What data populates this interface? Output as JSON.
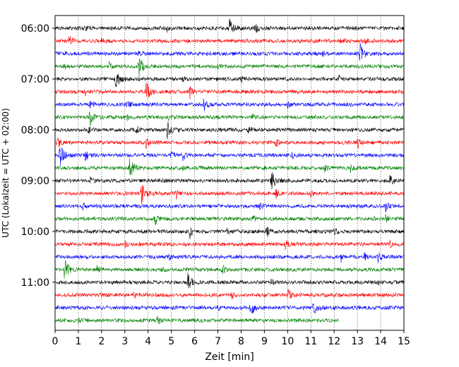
{
  "chart_data": {
    "type": "line",
    "title": "",
    "xlabel": "Zeit  [min]",
    "ylabel": "UTC (Lokalzeit = UTC + 02:00)",
    "xlim": [
      0,
      15
    ],
    "x_ticks": [
      0,
      1,
      2,
      3,
      4,
      5,
      6,
      7,
      8,
      9,
      10,
      11,
      12,
      13,
      14,
      15
    ],
    "y_tick_labels": [
      "06:00",
      "07:00",
      "08:00",
      "09:00",
      "10:00",
      "11:00"
    ],
    "trace_interval_min": 15,
    "trace_colors": [
      "#000000",
      "#ff0000",
      "#0000ff",
      "#008000"
    ],
    "grid": "vertical dotted lines at each minute",
    "legend": "none",
    "traces": [
      {
        "start": "06:00",
        "end_min": 15,
        "events": [
          [
            7.5,
            12
          ],
          [
            8.6,
            10
          ],
          [
            4.8,
            5
          ],
          [
            1.3,
            4
          ]
        ]
      },
      {
        "start": "06:15",
        "end_min": 15,
        "events": [
          [
            0.6,
            9
          ],
          [
            2.0,
            4
          ],
          [
            12.3,
            4
          ],
          [
            13.3,
            5
          ]
        ]
      },
      {
        "start": "06:30",
        "end_min": 15,
        "events": [
          [
            13.1,
            14
          ],
          [
            11.5,
            4
          ],
          [
            3.6,
            3
          ]
        ]
      },
      {
        "start": "06:45",
        "end_min": 15,
        "events": [
          [
            3.6,
            16
          ],
          [
            2.3,
            6
          ],
          [
            0.4,
            4
          ],
          [
            7.0,
            4
          ]
        ]
      },
      {
        "start": "07:00",
        "end_min": 15,
        "events": [
          [
            2.6,
            13
          ],
          [
            8.0,
            5
          ],
          [
            12.2,
            5
          ],
          [
            5.5,
            4
          ]
        ]
      },
      {
        "start": "07:15",
        "end_min": 15,
        "events": [
          [
            3.9,
            16
          ],
          [
            5.8,
            9
          ],
          [
            1.3,
            4
          ]
        ]
      },
      {
        "start": "07:30",
        "end_min": 15,
        "events": [
          [
            6.4,
            10
          ],
          [
            1.5,
            7
          ],
          [
            3.1,
            4
          ],
          [
            10.0,
            4
          ]
        ]
      },
      {
        "start": "07:45",
        "end_min": 15,
        "events": [
          [
            1.5,
            12
          ],
          [
            4.9,
            8
          ],
          [
            3.1,
            6
          ],
          [
            8.5,
            4
          ]
        ]
      },
      {
        "start": "08:00",
        "end_min": 15,
        "events": [
          [
            4.8,
            14
          ],
          [
            1.4,
            8
          ],
          [
            3.5,
            6
          ],
          [
            8.3,
            5
          ]
        ]
      },
      {
        "start": "08:15",
        "end_min": 15,
        "events": [
          [
            0.1,
            9
          ],
          [
            3.9,
            8
          ],
          [
            9.5,
            6
          ],
          [
            13.0,
            8
          ]
        ]
      },
      {
        "start": "08:30",
        "end_min": 15,
        "events": [
          [
            0.2,
            17
          ],
          [
            1.3,
            10
          ],
          [
            5.0,
            8
          ],
          [
            5.5,
            7
          ],
          [
            10.2,
            4
          ]
        ]
      },
      {
        "start": "08:45",
        "end_min": 15,
        "events": [
          [
            3.2,
            17
          ],
          [
            11.6,
            6
          ],
          [
            12.7,
            5
          ],
          [
            5.5,
            3
          ]
        ]
      },
      {
        "start": "09:00",
        "end_min": 15,
        "events": [
          [
            9.3,
            14
          ],
          [
            14.4,
            8
          ],
          [
            1.5,
            4
          ]
        ]
      },
      {
        "start": "09:15",
        "end_min": 15,
        "events": [
          [
            3.7,
            16
          ],
          [
            5.2,
            8
          ],
          [
            9.5,
            8
          ],
          [
            11.0,
            5
          ]
        ]
      },
      {
        "start": "09:30",
        "end_min": 15,
        "events": [
          [
            14.2,
            9
          ],
          [
            8.8,
            5
          ],
          [
            1.2,
            4
          ]
        ]
      },
      {
        "start": "09:45",
        "end_min": 15,
        "events": [
          [
            4.3,
            9
          ],
          [
            14.2,
            6
          ],
          [
            8.5,
            4
          ]
        ]
      },
      {
        "start": "10:00",
        "end_min": 15,
        "events": [
          [
            5.8,
            9
          ],
          [
            7.4,
            7
          ],
          [
            9.1,
            9
          ],
          [
            12.0,
            4
          ]
        ]
      },
      {
        "start": "10:15",
        "end_min": 15,
        "events": [
          [
            9.9,
            7
          ],
          [
            3.0,
            4
          ],
          [
            14.4,
            4
          ]
        ]
      },
      {
        "start": "10:30",
        "end_min": 15,
        "events": [
          [
            13.9,
            9
          ],
          [
            12.3,
            7
          ],
          [
            13.3,
            6
          ],
          [
            4.9,
            4
          ]
        ]
      },
      {
        "start": "10:45",
        "end_min": 15,
        "events": [
          [
            0.4,
            15
          ],
          [
            7.2,
            7
          ],
          [
            1.8,
            5
          ],
          [
            4.6,
            4
          ]
        ]
      },
      {
        "start": "11:00",
        "end_min": 15,
        "events": [
          [
            5.7,
            12
          ],
          [
            9.3,
            5
          ],
          [
            13.8,
            4
          ]
        ]
      },
      {
        "start": "11:15",
        "end_min": 15,
        "events": [
          [
            10.0,
            10
          ],
          [
            7.6,
            5
          ],
          [
            3.4,
            4
          ]
        ]
      },
      {
        "start": "11:30",
        "end_min": 15,
        "events": [
          [
            8.4,
            11
          ],
          [
            11.1,
            11
          ],
          [
            7.0,
            6
          ]
        ]
      },
      {
        "start": "11:45",
        "end_min": 12.2,
        "events": [
          [
            4.4,
            6
          ],
          [
            1.0,
            3
          ]
        ]
      }
    ]
  }
}
